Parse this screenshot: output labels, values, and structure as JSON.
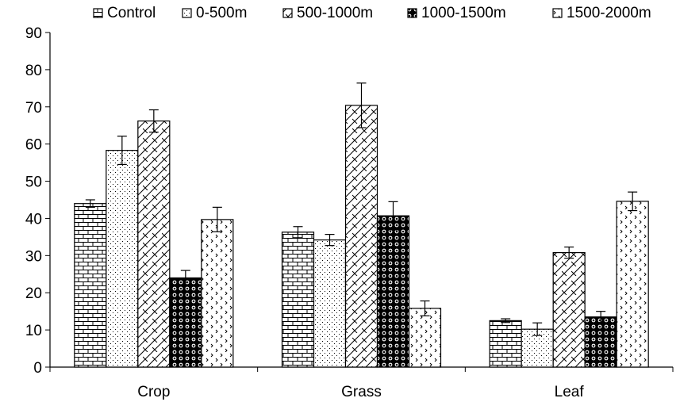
{
  "chart_data": {
    "type": "bar",
    "categories": [
      "Crop",
      "Grass",
      "Leaf"
    ],
    "ylim": [
      0,
      90
    ],
    "yticks": [
      0,
      10,
      20,
      30,
      40,
      50,
      60,
      70,
      80,
      90
    ],
    "grid": false,
    "legend_position": "top",
    "series": [
      {
        "name": "Control",
        "pattern": "brick",
        "values": [
          44,
          36.3,
          12.5
        ],
        "errors": [
          1,
          1.5,
          0.5
        ]
      },
      {
        "name": "0-500m",
        "pattern": "dots",
        "values": [
          58.3,
          34.2,
          10.2
        ],
        "errors": [
          3.8,
          1.5,
          1.7
        ]
      },
      {
        "name": "500-1000m",
        "pattern": "diagonal-cross",
        "values": [
          66.2,
          70.4,
          30.8
        ],
        "errors": [
          3,
          6,
          1.5
        ]
      },
      {
        "name": "1000-1500m",
        "pattern": "circles",
        "values": [
          24,
          40.7,
          13.5
        ],
        "errors": [
          2,
          3.8,
          1.5
        ]
      },
      {
        "name": "1500-2000m",
        "pattern": "arrows",
        "values": [
          39.7,
          15.8,
          44.6
        ],
        "errors": [
          3.3,
          2,
          2.5
        ]
      }
    ],
    "colors": {
      "fill": "#ffffff",
      "stroke": "#000000"
    }
  }
}
